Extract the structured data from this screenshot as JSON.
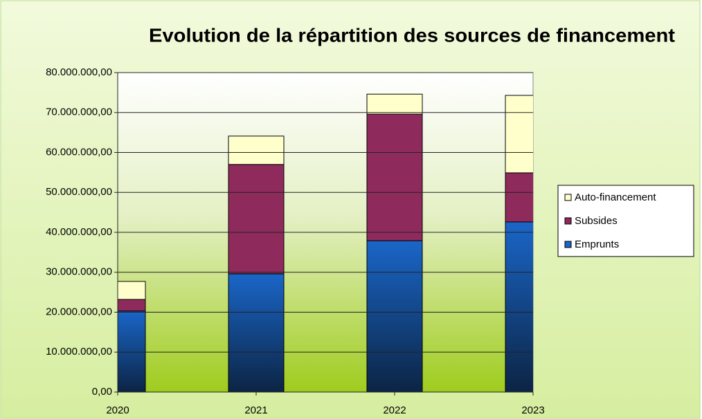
{
  "chart_data": {
    "type": "stacked_bar",
    "title": "Evolution de la répartition des sources de financement",
    "categories": [
      "2020",
      "2021",
      "2022",
      "2023"
    ],
    "series": [
      {
        "name": "Emprunts",
        "color": "#1a66c8",
        "values": [
          20300000,
          29600000,
          37900000,
          42600000
        ]
      },
      {
        "name": "Subsides",
        "color": "#8e2b5c",
        "values": [
          2900000,
          27400000,
          31700000,
          12300000
        ]
      },
      {
        "name": "Auto-financement",
        "color": "#ffffcc",
        "values": [
          4500000,
          7100000,
          5000000,
          19400000
        ]
      }
    ],
    "ylim": [
      0,
      80000000
    ],
    "yticks": [
      {
        "value": 0,
        "label": "0,00"
      },
      {
        "value": 10000000,
        "label": "10.000.000,00"
      },
      {
        "value": 20000000,
        "label": "20.000.000,00"
      },
      {
        "value": 30000000,
        "label": "30.000.000,00"
      },
      {
        "value": 40000000,
        "label": "40.000.000,00"
      },
      {
        "value": 50000000,
        "label": "50.000.000,00"
      },
      {
        "value": 60000000,
        "label": "60.000.000,00"
      },
      {
        "value": 70000000,
        "label": "70.000.000,00"
      },
      {
        "value": 80000000,
        "label": "80.000.000,00"
      }
    ],
    "grid": true,
    "legend": "right"
  }
}
